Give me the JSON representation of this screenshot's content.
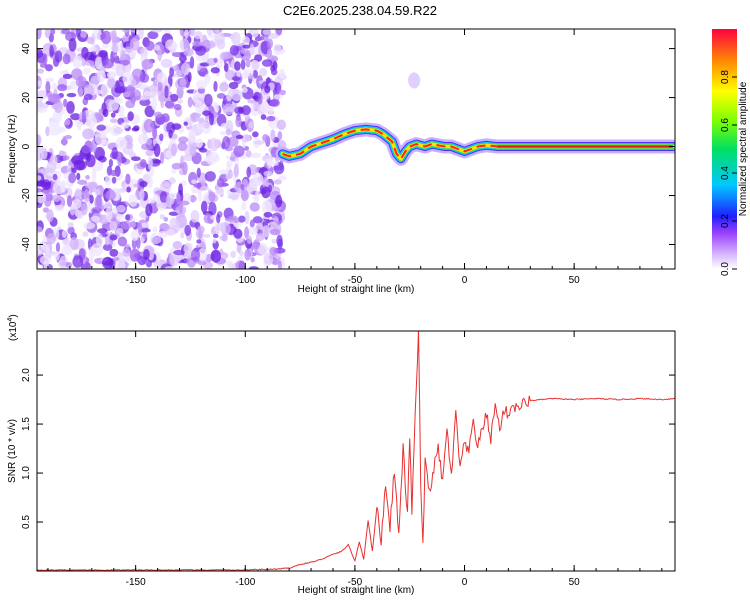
{
  "title": "C2E6.2025.238.04.59.R22",
  "chart_data": [
    {
      "type": "heatmap",
      "xlabel": "Height of straight line (km)",
      "ylabel": "Frequency (Hz)",
      "xlim": [
        -195,
        96
      ],
      "ylim": [
        -50,
        48
      ],
      "xticks": [
        -150,
        -100,
        -50,
        0,
        50
      ],
      "yticks": [
        -40,
        -20,
        0,
        20,
        40
      ],
      "noise_region_x": [
        -195,
        -83
      ],
      "ridge_frequency": {
        "x": [
          -83,
          -80,
          -75,
          -70,
          -65,
          -60,
          -55,
          -50,
          -45,
          -40,
          -37,
          -33,
          -31,
          -29,
          -27,
          -25,
          -22,
          -20,
          -18,
          -15,
          -12,
          -9,
          -6,
          -3,
          0,
          3,
          6,
          10,
          15,
          25,
          50,
          75,
          95
        ],
        "y": [
          -3,
          -4,
          -3,
          0,
          1.5,
          3,
          5,
          6.5,
          7,
          6.5,
          5,
          2,
          -3,
          -5,
          -2,
          0,
          1,
          0.5,
          0,
          1,
          0.5,
          0,
          0,
          -1,
          -2,
          -1,
          0,
          0.5,
          0,
          0,
          0,
          0,
          0
        ]
      },
      "faint_blob": {
        "x": -23,
        "y": 27
      },
      "colorbar": {
        "label": "Normalized spectral amplitude",
        "ticks": [
          0.0,
          0.2,
          0.4,
          0.6,
          0.8
        ],
        "tick_labels": [
          "0.0",
          "0.2",
          "0.4",
          "0.6",
          "0.8"
        ],
        "range": [
          0,
          1
        ],
        "colormap": "rainbow"
      }
    },
    {
      "type": "line",
      "xlabel": "Height of straight line (km)",
      "ylabel": "SNR (10 * v/v)",
      "y_multiplier_label": "(x10^4)",
      "xlim": [
        -195,
        96
      ],
      "ylim": [
        0,
        2.45
      ],
      "xticks": [
        -150,
        -100,
        -50,
        0,
        50
      ],
      "yticks": [
        0.5,
        1.0,
        1.5,
        2.0
      ],
      "ytick_labels": [
        "0.5",
        "1.0",
        "1.5",
        "2.0"
      ],
      "series": [
        {
          "color": "#e83030",
          "x": [
            -195,
            -150,
            -100,
            -85,
            -80,
            -76,
            -72,
            -68,
            -64,
            -60,
            -56,
            -53,
            -50,
            -48,
            -46,
            -44,
            -42,
            -40,
            -38,
            -36,
            -34,
            -32,
            -30,
            -28,
            -26,
            -25,
            -24,
            -23,
            -22,
            -21,
            -20,
            -19,
            -18,
            -16,
            -14,
            -12,
            -10,
            -8,
            -6,
            -4,
            -2,
            0,
            2,
            4,
            6,
            8,
            10,
            12,
            14,
            16,
            18,
            20,
            22,
            24,
            26,
            28,
            30,
            35,
            40,
            50,
            60,
            70,
            80,
            90,
            96
          ],
          "y": [
            0.01,
            0.01,
            0.01,
            0.02,
            0.03,
            0.06,
            0.08,
            0.1,
            0.13,
            0.17,
            0.2,
            0.27,
            0.1,
            0.3,
            0.12,
            0.52,
            0.2,
            0.65,
            0.3,
            0.9,
            0.45,
            1.05,
            0.35,
            1.25,
            0.55,
            1.4,
            0.6,
            1.3,
            1.85,
            2.45,
            0.9,
            0.25,
            1.1,
            0.8,
            1.05,
            1.25,
            0.9,
            1.45,
            0.95,
            1.6,
            1.05,
            1.3,
            1.2,
            1.55,
            1.25,
            1.45,
            1.6,
            1.35,
            1.7,
            1.45,
            1.65,
            1.6,
            1.7,
            1.65,
            1.7,
            1.72,
            1.74,
            1.75,
            1.76,
            1.75,
            1.76,
            1.75,
            1.76,
            1.75,
            1.76
          ]
        }
      ]
    }
  ]
}
